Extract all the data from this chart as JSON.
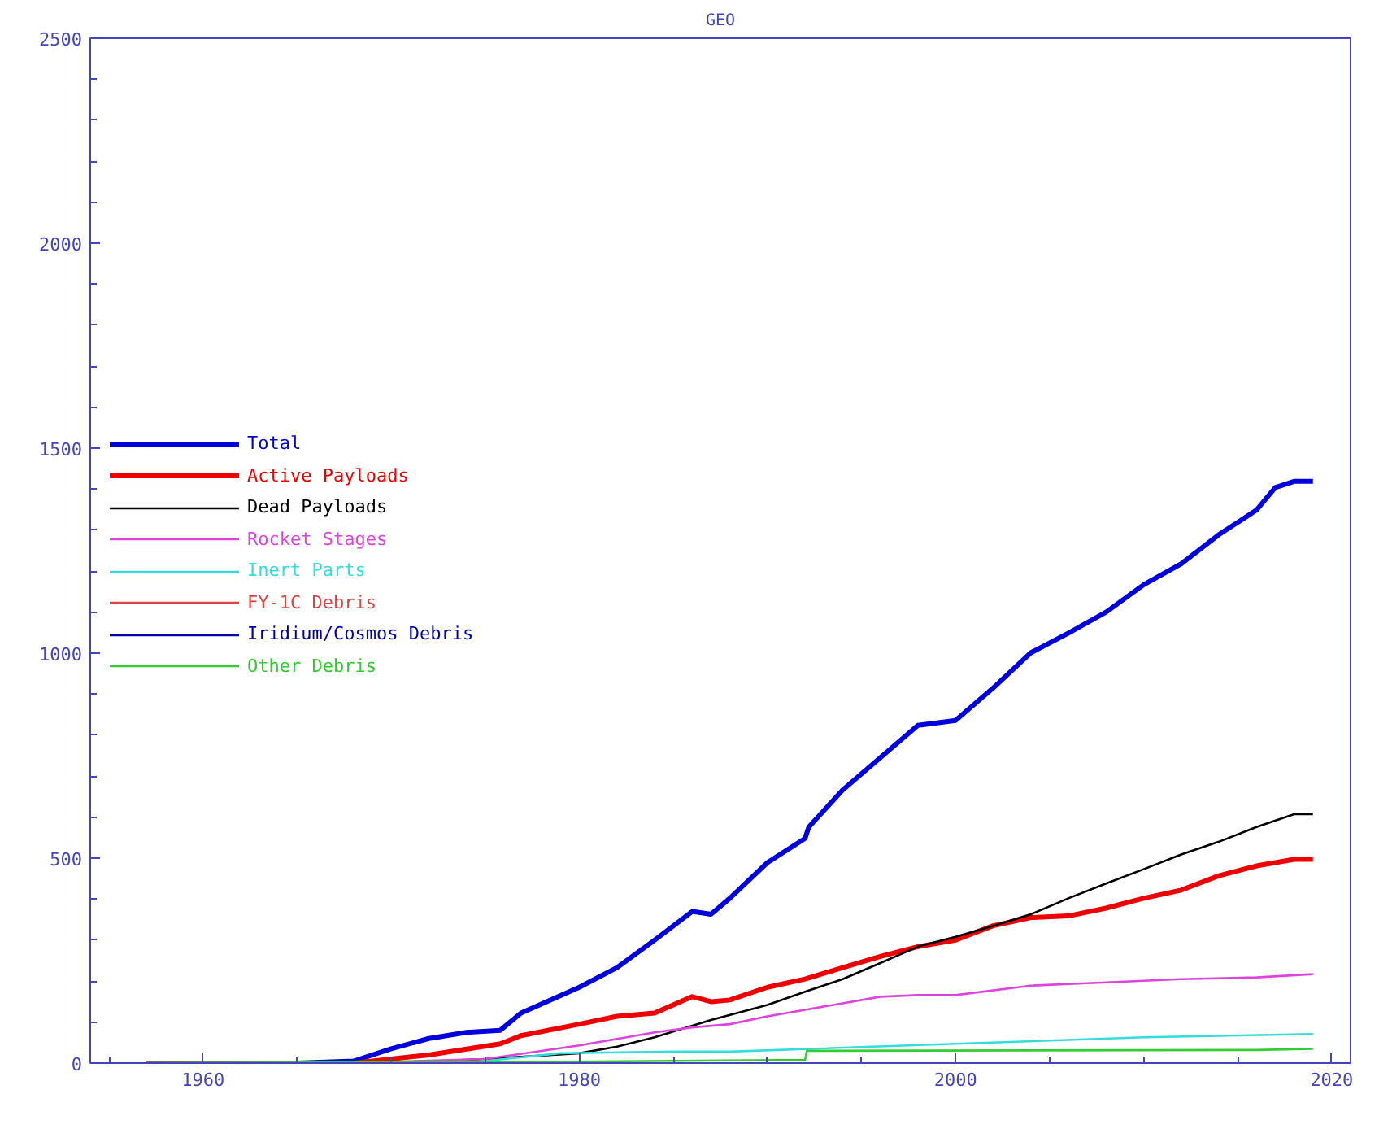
{
  "chart_data": {
    "type": "line",
    "title": "GEO",
    "xlim": [
      1954,
      2021
    ],
    "ylim": [
      0,
      2500
    ],
    "xticks": [
      1960,
      1980,
      2000,
      2020
    ],
    "yticks": [
      0,
      500,
      1000,
      1500,
      2000,
      2500
    ],
    "grid": false,
    "legend": "left",
    "marker": "none",
    "line_style": "solid",
    "series": [
      {
        "name": "Total",
        "color": "#0000dd",
        "x": [
          1957,
          1965,
          1968,
          1970,
          1972,
          1974,
          1975.8,
          1976.9,
          1980,
          1982,
          1984,
          1986,
          1987,
          1988,
          1990,
          1992,
          1992.2,
          1994,
          1996,
          1998,
          2000,
          2002,
          2004,
          2006,
          2008,
          2010,
          2012,
          2014,
          2016,
          2017,
          2018,
          2019
        ],
        "values": [
          0,
          0,
          5,
          35,
          60,
          75,
          80,
          122,
          185,
          233,
          300,
          370,
          363,
          402,
          489,
          548,
          576,
          666,
          745,
          824,
          836,
          915,
          1001,
          1049,
          1100,
          1167,
          1218,
          1289,
          1349,
          1404,
          1419,
          1419
        ]
      },
      {
        "name": "Active Payloads",
        "color": "#ee0000",
        "x": [
          1957,
          1968,
          1970,
          1972,
          1975.8,
          1976.9,
          1980,
          1982,
          1984,
          1986,
          1987,
          1988,
          1990,
          1992,
          1994,
          1996,
          1998,
          2000,
          2002,
          2004,
          2006,
          2008,
          2010,
          2012,
          2014,
          2016,
          2018,
          2019
        ],
        "values": [
          0,
          0,
          10,
          20,
          47,
          67,
          95,
          114,
          122,
          162,
          150,
          154,
          185,
          205,
          233,
          260,
          284,
          300,
          335,
          355,
          359,
          378,
          402,
          422,
          457,
          481,
          497,
          497
        ]
      },
      {
        "name": "Dead Payloads",
        "color": "#000000",
        "x": [
          1957,
          1970,
          1975,
          1980,
          1982,
          1984,
          1987,
          1990,
          1992,
          1994,
          1996,
          1998,
          2000,
          2002,
          2004,
          2006,
          2008,
          2010,
          2012,
          2014,
          2016,
          2018,
          2019
        ],
        "values": [
          0,
          0,
          10,
          24,
          40,
          63,
          105,
          142,
          174,
          205,
          244,
          284,
          308,
          335,
          363,
          402,
          438,
          473,
          509,
          540,
          576,
          607,
          607
        ]
      },
      {
        "name": "Rocket Stages",
        "color": "#dd44dd",
        "x": [
          1957,
          1965,
          1970,
          1975,
          1980,
          1984,
          1986,
          1988,
          1990,
          1992,
          1994,
          1996,
          1998,
          2000,
          2004,
          2008,
          2012,
          2016,
          2019
        ],
        "values": [
          0,
          0,
          3,
          10,
          43,
          75,
          87,
          95,
          114,
          130,
          146,
          162,
          166,
          166,
          189,
          197,
          205,
          209,
          217
        ]
      },
      {
        "name": "Inert Parts",
        "color": "#33dddd",
        "x": [
          1957,
          1974,
          1976,
          1979,
          1985,
          1988,
          2000,
          2010,
          2019
        ],
        "values": [
          0,
          0,
          10,
          24,
          28,
          28,
          47,
          63,
          71
        ]
      },
      {
        "name": "FY-1C Debris",
        "color": "#dd4444"
      },
      {
        "name": "Iridium/Cosmos Debris",
        "color": "#0000aa"
      },
      {
        "name": "Other Debris",
        "color": "#33cc33",
        "x": [
          1957,
          1978,
          1992,
          1992.1,
          2016,
          2019
        ],
        "values": [
          0,
          3,
          8,
          30,
          32,
          35
        ]
      }
    ]
  }
}
